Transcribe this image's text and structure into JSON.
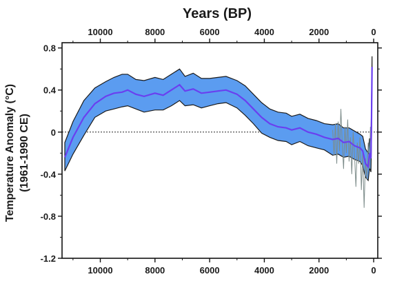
{
  "chart_data": {
    "type": "area",
    "title": "Years (BP)",
    "ylabel_line1": "Temperature Anomaly (°C)",
    "ylabel_line2": "(1961-1990 CE)",
    "xlim": [
      11400,
      -150
    ],
    "ylim": [
      -1.2,
      0.85
    ],
    "x_ticks": [
      10000,
      8000,
      6000,
      4000,
      2000,
      0
    ],
    "x_tick_labels": [
      "10000",
      "8000",
      "6000",
      "4000",
      "2000",
      "0"
    ],
    "y_ticks": [
      0.8,
      0.4,
      0,
      -0.4,
      -0.8,
      -1.2
    ],
    "y_tick_labels": [
      "0.8",
      "0.4",
      "0",
      "-0.4",
      "-0.8",
      "-1.2"
    ],
    "zero_line": "dotted",
    "series": [
      {
        "color": "#6a3ff0",
        "band_color": "#5b9cf0",
        "x": [
          11300,
          11000,
          10600,
          10200,
          9800,
          9500,
          9200,
          9000,
          8700,
          8400,
          8000,
          7700,
          7400,
          7100,
          6900,
          6600,
          6300,
          6000,
          5700,
          5400,
          5000,
          4700,
          4400,
          4100,
          3800,
          3500,
          3200,
          3000,
          2700,
          2400,
          2100,
          1800,
          1500,
          1300,
          1100,
          900,
          700,
          500,
          400,
          300,
          200,
          150,
          100,
          80,
          60
        ],
        "y": [
          -0.24,
          -0.05,
          0.14,
          0.27,
          0.34,
          0.37,
          0.38,
          0.4,
          0.36,
          0.34,
          0.37,
          0.35,
          0.4,
          0.45,
          0.39,
          0.41,
          0.37,
          0.38,
          0.39,
          0.4,
          0.36,
          0.3,
          0.22,
          0.14,
          0.08,
          0.05,
          0.04,
          0.02,
          0.04,
          0.0,
          -0.02,
          -0.05,
          -0.07,
          -0.06,
          -0.1,
          -0.09,
          -0.13,
          -0.15,
          -0.18,
          -0.3,
          -0.33,
          -0.2,
          -0.25,
          0.1,
          0.62
        ],
        "lower": [
          -0.37,
          -0.21,
          -0.03,
          0.14,
          0.2,
          0.22,
          0.24,
          0.25,
          0.22,
          0.19,
          0.21,
          0.21,
          0.25,
          0.3,
          0.25,
          0.26,
          0.23,
          0.25,
          0.27,
          0.28,
          0.23,
          0.16,
          0.08,
          -0.01,
          -0.05,
          -0.08,
          -0.09,
          -0.12,
          -0.09,
          -0.13,
          -0.15,
          -0.17,
          -0.22,
          -0.21,
          -0.24,
          -0.23,
          -0.26,
          -0.28,
          -0.32,
          -0.43,
          -0.46,
          -0.34,
          -0.38,
          -0.08,
          0.55
        ],
        "upper": [
          -0.1,
          0.1,
          0.3,
          0.42,
          0.48,
          0.52,
          0.55,
          0.55,
          0.5,
          0.49,
          0.52,
          0.5,
          0.55,
          0.6,
          0.53,
          0.56,
          0.51,
          0.51,
          0.52,
          0.53,
          0.49,
          0.44,
          0.36,
          0.28,
          0.22,
          0.19,
          0.18,
          0.15,
          0.17,
          0.13,
          0.11,
          0.08,
          0.07,
          0.08,
          0.04,
          0.04,
          0.01,
          -0.02,
          -0.04,
          -0.16,
          -0.2,
          -0.06,
          -0.11,
          0.28,
          0.72
        ]
      },
      {
        "color": "#7d8c8a",
        "x": [
          1500,
          1450,
          1400,
          1350,
          1300,
          1250,
          1200,
          1150,
          1100,
          1050,
          1000,
          950,
          900,
          850,
          800,
          750,
          700,
          650,
          600,
          550,
          500,
          450,
          400,
          350,
          300,
          250,
          200,
          150,
          120,
          100
        ],
        "y": [
          0.02,
          -0.22,
          0.08,
          -0.3,
          0.1,
          -0.18,
          0.22,
          -0.12,
          -0.35,
          0.05,
          -0.2,
          0.12,
          -0.28,
          -0.05,
          -0.4,
          0.0,
          -0.22,
          -0.52,
          -0.1,
          -0.3,
          -0.05,
          -0.55,
          -0.2,
          -0.72,
          -0.25,
          -0.45,
          -0.1,
          -0.35,
          0.05,
          -0.2
        ]
      }
    ]
  }
}
